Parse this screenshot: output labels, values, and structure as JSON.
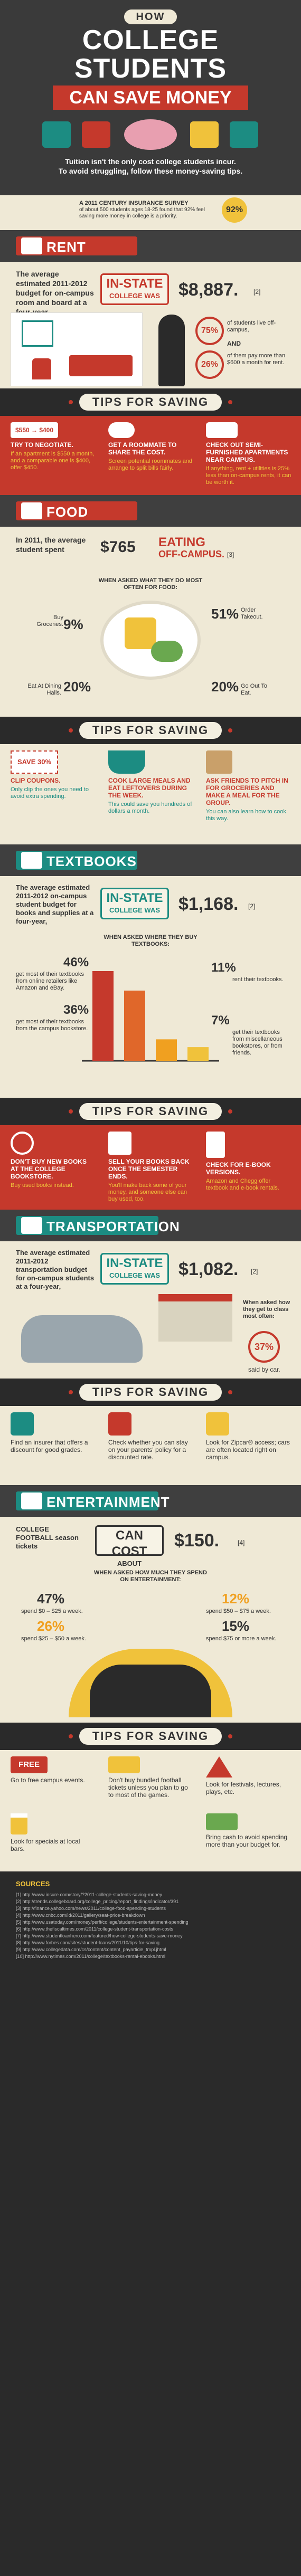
{
  "header": {
    "how": "HOW",
    "line1": "COLLEGE",
    "line2": "STUDENTS",
    "line3": "CAN SAVE MONEY",
    "intro1": "Tuition isn't the only cost college students incur.",
    "intro2": "To avoid struggling, follow these money-saving tips.",
    "survey_title": "A 2011 CENTURY INSURANCE SURVEY",
    "survey_text": "of about 500 students ages 18-25 found that 92% feel saving more money in college is a priority.",
    "survey_pct": "92%",
    "colors": {
      "teal": "#1c8c82",
      "red": "#c5392c",
      "dark": "#3f3f3f",
      "cream": "#efe9d6",
      "yellow": "#f0c23b"
    }
  },
  "rent": {
    "title": "RENT",
    "icon": "house-icon",
    "intro": "The average estimated 2011-2012 budget for on-campus room and board at a four-year,",
    "stamp1": "IN-STATE",
    "stamp2": "COLLEGE WAS",
    "amount": "$8,887.",
    "ref": "[2]",
    "pct1": "75%",
    "pct1_text": "of students live off-campus,",
    "and_text": "AND",
    "pct2": "26%",
    "pct2_text": "of them pay more than $600 a month for rent."
  },
  "rent_tips": {
    "title": "TIPS FOR SAVING",
    "items": [
      {
        "icon": "price-tag-icon",
        "badge": "$550 → $400",
        "title": "TRY TO NEGOTIATE.",
        "sub": "If an apartment is $550 a month, and a comparable one is $400, offer $450."
      },
      {
        "icon": "roommate-icon",
        "title": "GET A ROOMMATE TO SHARE THE COST.",
        "sub": "Screen potential roommates and arrange to split bills fairly."
      },
      {
        "icon": "sofa-icon",
        "title": "CHECK OUT SEMI-FURNISHED APARTMENTS NEAR CAMPUS.",
        "sub": "If anything, rent + utilities is 25% less than on-campus rents, it can be worth it."
      }
    ]
  },
  "food": {
    "title": "FOOD",
    "intro": "In 2011, the average student spent",
    "amount": "$765",
    "eat1": "EATING",
    "eat2": "OFF-CAMPUS.",
    "ref": "[3]",
    "q": "WHEN ASKED WHAT THEY DO MOST OFTEN FOR FOOD:",
    "items": [
      {
        "pct": "9%",
        "label": "Buy Groceries."
      },
      {
        "pct": "51%",
        "label": "Order Takeout."
      },
      {
        "pct": "20%",
        "label": "Eat At Dining Halls."
      },
      {
        "pct": "20%",
        "label": "Go Out To Eat."
      }
    ]
  },
  "food_tips": {
    "title": "TIPS FOR SAVING",
    "items": [
      {
        "icon": "coupon-icon",
        "badge": "SAVE 30%",
        "title": "CLIP COUPONS.",
        "sub": "Only clip the ones you need to avoid extra spending."
      },
      {
        "icon": "pot-icon",
        "title": "COOK LARGE MEALS AND EAT LEFTOVERS DURING THE WEEK.",
        "sub": "This could save you hundreds of dollars a month."
      },
      {
        "icon": "grocery-bag-icon",
        "title": "ASK FRIENDS TO PITCH IN FOR GROCERIES AND MAKE A MEAL FOR THE GROUP.",
        "sub": "You can also learn how to cook this way."
      }
    ]
  },
  "textbooks": {
    "title": "TEXTBOOKS",
    "intro": "The average estimated 2011-2012 on-campus student budget for books and supplies at a four-year,",
    "stamp1": "IN-STATE",
    "stamp2": "COLLEGE WAS",
    "amount": "$1,168.",
    "ref": "[2]",
    "q": "WHEN ASKED WHERE THEY BUY TEXTBOOKS:",
    "items": [
      {
        "pct": "46%",
        "label": "get most of their textbooks from online retailers like Amazon and eBay."
      },
      {
        "pct": "36%",
        "label": "get most of their textbooks from the campus bookstore."
      },
      {
        "pct": "11%",
        "label": "rent their textbooks."
      },
      {
        "pct": "7%",
        "label": "get their textbooks from miscellaneous bookstores, or from friends."
      }
    ],
    "chart_data": {
      "type": "bar",
      "categories": [
        "Online retailers",
        "Campus bookstore",
        "Rent",
        "Miscellaneous / friends"
      ],
      "values": [
        46,
        36,
        11,
        7
      ]
    }
  },
  "textbook_tips": {
    "title": "TIPS FOR SAVING",
    "items": [
      {
        "icon": "no-bookstore-icon",
        "title": "DON'T BUY NEW BOOKS AT THE COLLEGE BOOKSTORE.",
        "sub": "Buy used books instead."
      },
      {
        "icon": "sell-books-icon",
        "title": "SELL YOUR BOOKS BACK ONCE THE SEMESTER ENDS.",
        "sub": "You'll make back some of your money, and someone else can buy used, too."
      },
      {
        "icon": "ebook-icon",
        "title": "CHECK FOR E-BOOK VERSIONS.",
        "sub": "Amazon and Chegg offer textbook and e-book rentals."
      }
    ]
  },
  "transport": {
    "title": "TRANSPORTATION",
    "intro": "The average estimated 2011-2012 transportation budget for on-campus students at a four-year,",
    "stamp1": "IN-STATE",
    "stamp2": "COLLEGE WAS",
    "amount": "$1,082.",
    "ref": "[2]",
    "q": "When asked how they get to class most often:",
    "pct": "37%",
    "pct_label": "said by car."
  },
  "transport_tips": {
    "title": "TIPS FOR SAVING",
    "items": [
      {
        "icon": "insurance-icon",
        "title": "Find an insurer that offers a discount for good grades."
      },
      {
        "icon": "checklist-icon",
        "title": "Check whether you can stay on your parents' policy for a discounted rate."
      },
      {
        "icon": "car-share-icon",
        "title": "Look for Zipcar® access; cars are often located right on campus."
      }
    ]
  },
  "entertainment": {
    "title": "ENTERTAINMENT",
    "intro": "COLLEGE FOOTBALL season tickets",
    "can": "CAN COST",
    "about": "ABOUT",
    "amount": "$150.",
    "ref": "[4]",
    "q": "WHEN ASKED HOW MUCH THEY SPEND ON ENTERTAINMENT:",
    "items": [
      {
        "pct": "47%",
        "label": "spend $0 – $25 a week."
      },
      {
        "pct": "12%",
        "label": "spend $50 – $75 a week."
      },
      {
        "pct": "26%",
        "label": "spend $25 – $50 a week."
      },
      {
        "pct": "15%",
        "label": "spend $75 or more a week."
      }
    ]
  },
  "ent_tips": {
    "title": "TIPS FOR SAVING",
    "items": [
      {
        "icon": "free-tag-icon",
        "badge": "FREE",
        "title": "Go to free campus events."
      },
      {
        "icon": "ticket-icon",
        "title": "Don't buy bundled football tickets unless you plan to go to most of the games."
      },
      {
        "icon": "tent-icon",
        "title": "Look for festivals, lectures, plays, etc."
      },
      {
        "icon": "beer-icon",
        "title": "Look for specials at local bars."
      },
      {
        "icon": "cash-icon",
        "title": "Bring cash to avoid spending more than your budget for."
      }
    ]
  },
  "footer": {
    "sources_label": "SOURCES",
    "sources": [
      "[1] http://www.insure.com/story/?2011-college-students-saving-money",
      "[2] http://trends.collegeboard.org/college_pricing/report_findings/indicator/391",
      "[3] http://finance.yahoo.com/news/2011/college-food-spending-students",
      "[4] http://www.cnbc.com/id/2011/gallery/seat-price-breakdown",
      "[5] http://www.usatoday.com/money/perfi/college/students-entertainment-spending",
      "[6] http://www.thefiscaltimes.com/2011/college-student-transportation-costs",
      "[7] http://www.studentloanhero.com/featured/how-college-students-save-money",
      "[8] http://www.forbes.com/sites/student-loans/2011/10/tips-for-saving",
      "[9] http://www.collegedata.com/cs/content/content_payarticle_tmpl.jhtml",
      "[10] http://www.nytimes.com/2011/college/textbooks-rental-ebooks.html"
    ]
  }
}
